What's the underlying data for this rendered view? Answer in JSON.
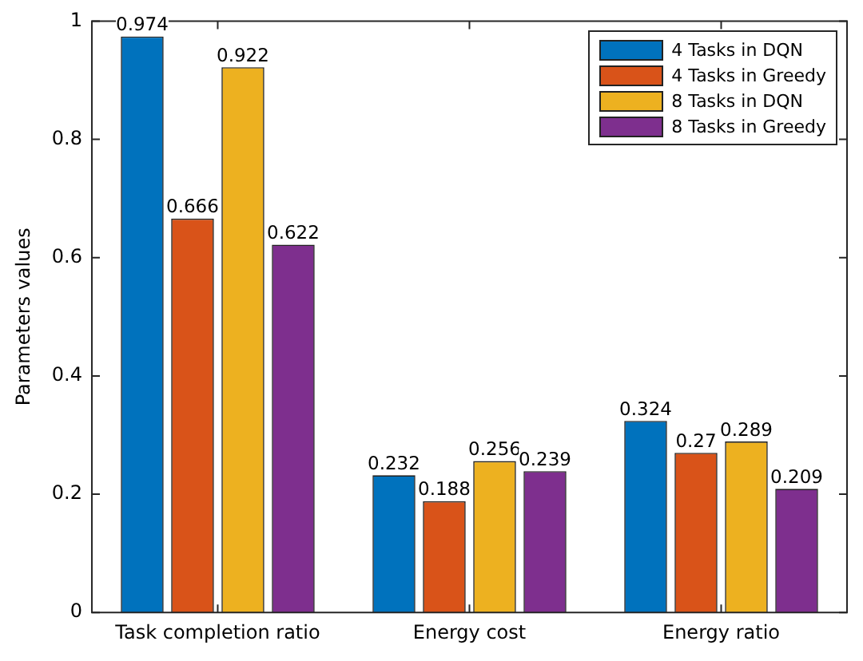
{
  "chart_data": {
    "type": "bar",
    "ylabel": "Parameters values",
    "categories": [
      "Task completion ratio",
      "Energy cost",
      "Energy ratio"
    ],
    "series": [
      {
        "name": "4 Tasks in DQN",
        "color": "#0072bd",
        "values": [
          0.974,
          0.232,
          0.324
        ]
      },
      {
        "name": "4 Tasks in Greedy",
        "color": "#d95319",
        "values": [
          0.666,
          0.188,
          0.27
        ]
      },
      {
        "name": "8 Tasks in DQN",
        "color": "#edb120",
        "values": [
          0.922,
          0.256,
          0.289
        ]
      },
      {
        "name": "8 Tasks in Greedy",
        "color": "#7e2f8e",
        "values": [
          0.622,
          0.239,
          0.209
        ]
      }
    ],
    "ylim": [
      0,
      1
    ],
    "yticks": [
      0,
      0.2,
      0.4,
      0.6,
      0.8,
      1
    ],
    "data_labels": true,
    "legend": "top right",
    "grid": false
  }
}
